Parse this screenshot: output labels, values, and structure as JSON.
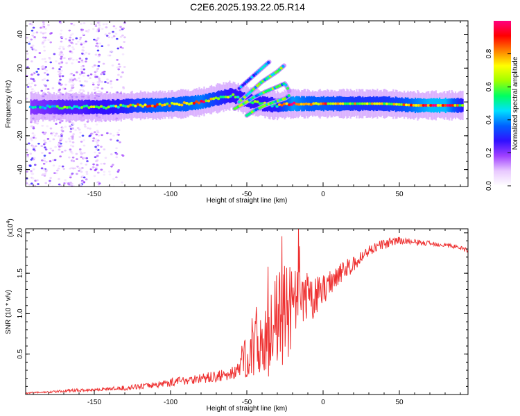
{
  "figure": {
    "title": "C2E6.2025.193.22.05.R14"
  },
  "chart_data": [
    {
      "type": "heatmap",
      "name": "spectrogram",
      "xlabel": "Height of straight line (km)",
      "ylabel": "Frequency (Hz)",
      "xlim": [
        -195,
        95
      ],
      "ylim": [
        -50,
        48
      ],
      "xticks": [
        -150,
        -100,
        -50,
        0,
        50
      ],
      "yticks": [
        -40,
        -20,
        0,
        20,
        40
      ],
      "colorbar": {
        "label": "Normalized spectral amplitude",
        "range": [
          0.0,
          1.0
        ],
        "ticks": [
          0.0,
          0.2,
          0.4,
          0.6,
          0.8
        ],
        "tick_labels": [
          "0.0",
          "0.2",
          "0.4",
          "0.6",
          "0.8"
        ],
        "colormap": [
          "#ffffff",
          "#e8c8ff",
          "#a040ff",
          "#3010ff",
          "#0060ff",
          "#00e0ff",
          "#00ff60",
          "#a0ff00",
          "#ffff00",
          "#ff8000",
          "#ff0000",
          "#ff0080"
        ]
      },
      "main_band": [
        {
          "x": -192,
          "f": -3,
          "a": 0.45
        },
        {
          "x": -180,
          "f": -3,
          "a": 0.5
        },
        {
          "x": -170,
          "f": -3,
          "a": 0.55
        },
        {
          "x": -160,
          "f": -3,
          "a": 0.55
        },
        {
          "x": -150,
          "f": -3,
          "a": 0.6
        },
        {
          "x": -140,
          "f": -3,
          "a": 0.6
        },
        {
          "x": -130,
          "f": -2.5,
          "a": 0.65
        },
        {
          "x": -120,
          "f": -2,
          "a": 0.75
        },
        {
          "x": -110,
          "f": -2,
          "a": 0.8
        },
        {
          "x": -100,
          "f": -1.5,
          "a": 0.8
        },
        {
          "x": -90,
          "f": -1,
          "a": 0.8
        },
        {
          "x": -80,
          "f": 0,
          "a": 0.85
        },
        {
          "x": -70,
          "f": 2,
          "a": 0.7
        },
        {
          "x": -60,
          "f": 4,
          "a": 0.6
        },
        {
          "x": -50,
          "f": 1,
          "a": 0.6
        },
        {
          "x": -40,
          "f": -1,
          "a": 0.6
        },
        {
          "x": -30,
          "f": -2,
          "a": 0.65
        },
        {
          "x": -20,
          "f": -1,
          "a": 0.9
        },
        {
          "x": -10,
          "f": -1,
          "a": 0.8
        },
        {
          "x": 0,
          "f": -1,
          "a": 0.8
        },
        {
          "x": 10,
          "f": -1,
          "a": 0.75
        },
        {
          "x": 20,
          "f": -1,
          "a": 0.7
        },
        {
          "x": 30,
          "f": -1,
          "a": 0.7
        },
        {
          "x": 40,
          "f": -1,
          "a": 0.7
        },
        {
          "x": 50,
          "f": -1.5,
          "a": 0.75
        },
        {
          "x": 60,
          "f": -2,
          "a": 0.85
        },
        {
          "x": 70,
          "f": -2,
          "a": 0.95
        },
        {
          "x": 80,
          "f": -2,
          "a": 0.95
        },
        {
          "x": 92,
          "f": -2,
          "a": 0.6
        }
      ],
      "branches": [
        {
          "points": [
            [
              -55,
              8
            ],
            [
              -50,
              12
            ],
            [
              -45,
              16
            ],
            [
              -40,
              20
            ],
            [
              -35,
              24
            ]
          ],
          "a": 0.45
        },
        {
          "points": [
            [
              -55,
              0
            ],
            [
              -50,
              4
            ],
            [
              -45,
              8
            ],
            [
              -40,
              12
            ],
            [
              -35,
              15
            ],
            [
              -30,
              18
            ],
            [
              -25,
              22
            ]
          ],
          "a": 0.55
        },
        {
          "points": [
            [
              -58,
              -4
            ],
            [
              -52,
              -1
            ],
            [
              -45,
              3
            ],
            [
              -38,
              6
            ],
            [
              -30,
              9
            ],
            [
              -25,
              11
            ],
            [
              -22,
              6
            ]
          ],
          "a": 0.6
        },
        {
          "points": [
            [
              -50,
              -8
            ],
            [
              -45,
              -5
            ],
            [
              -38,
              -2
            ],
            [
              -32,
              0
            ],
            [
              -25,
              2
            ],
            [
              -22,
              4
            ]
          ],
          "a": 0.55
        }
      ],
      "noise_region": {
        "xmin": -195,
        "xmax": -130
      }
    },
    {
      "type": "line",
      "name": "snr",
      "xlabel": "Height of straight line (km)",
      "ylabel": "SNR (10 * v/v)",
      "y_multiplier": "(x10",
      "y_multiplier_exp": "4",
      "y_multiplier_close": ")",
      "xlim": [
        -195,
        95
      ],
      "ylim": [
        0.0,
        2.05
      ],
      "xticks": [
        -150,
        -100,
        -50,
        0,
        50
      ],
      "yticks": [
        0.5,
        1.0,
        1.5,
        2.0
      ],
      "ytick_labels": [
        "0.5",
        "1.0",
        "1.5",
        "2.0"
      ],
      "series": [
        {
          "color": "#ee3030",
          "x": [
            -195,
            -180,
            -165,
            -150,
            -140,
            -130,
            -120,
            -110,
            -100,
            -90,
            -80,
            -70,
            -60,
            -55,
            -50,
            -45,
            -40,
            -35,
            -30,
            -25,
            -20,
            -15,
            -10,
            -5,
            0,
            5,
            10,
            15,
            20,
            25,
            30,
            35,
            40,
            45,
            50,
            55,
            60,
            70,
            80,
            90,
            95
          ],
          "y": [
            0.02,
            0.03,
            0.05,
            0.06,
            0.07,
            0.08,
            0.1,
            0.12,
            0.15,
            0.18,
            0.2,
            0.22,
            0.25,
            0.35,
            0.5,
            0.6,
            0.7,
            0.75,
            0.9,
            1.0,
            1.05,
            1.1,
            1.15,
            1.2,
            1.3,
            1.4,
            1.5,
            1.55,
            1.6,
            1.7,
            1.78,
            1.83,
            1.86,
            1.88,
            1.9,
            1.9,
            1.88,
            1.87,
            1.85,
            1.82,
            1.78
          ],
          "noise_amplitude": [
            0.01,
            0.01,
            0.02,
            0.02,
            0.02,
            0.03,
            0.03,
            0.04,
            0.05,
            0.06,
            0.06,
            0.07,
            0.08,
            0.15,
            0.3,
            0.45,
            0.5,
            0.55,
            0.6,
            0.6,
            0.55,
            0.45,
            0.35,
            0.25,
            0.2,
            0.16,
            0.14,
            0.12,
            0.1,
            0.08,
            0.07,
            0.06,
            0.06,
            0.06,
            0.05,
            0.04,
            0.04,
            0.03,
            0.03,
            0.03,
            0.03
          ]
        }
      ]
    }
  ]
}
